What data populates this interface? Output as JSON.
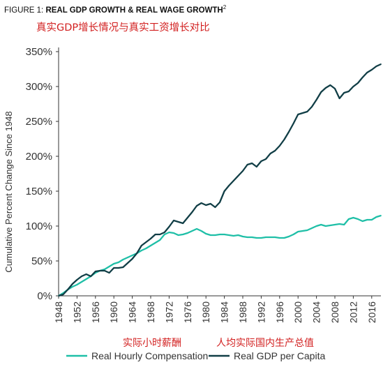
{
  "figure": {
    "label": "FIGURE 1:",
    "title": "REAL GDP GROWTH & REAL WAGE GROWTH",
    "superscript": "2"
  },
  "annotations": {
    "subtitle_cn": "真实GDP增长情况与真实工资增长对比",
    "comp_cn": "实际小时薪酬",
    "gdp_cn": "人均实际国内生产总值"
  },
  "colors": {
    "comp": "#1fbfa7",
    "gdp": "#113e46",
    "annotation": "#d21f1f"
  },
  "chart_data": {
    "type": "line",
    "ylabel": "Cumulative Percent Change Since 1948",
    "xlabel": "",
    "xlim": [
      1948,
      2018
    ],
    "ylim": [
      0,
      350
    ],
    "xticks": [
      1948,
      1952,
      1956,
      1960,
      1964,
      1968,
      1972,
      1976,
      1980,
      1984,
      1988,
      1992,
      1996,
      2000,
      2004,
      2008,
      2012,
      2016
    ],
    "yticks": [
      0,
      50,
      100,
      150,
      200,
      250,
      300,
      350
    ],
    "y_tick_format": "percent",
    "grid": false,
    "legend": "bottom",
    "x": [
      1948,
      1949,
      1950,
      1951,
      1952,
      1953,
      1954,
      1955,
      1956,
      1957,
      1958,
      1959,
      1960,
      1961,
      1962,
      1963,
      1964,
      1965,
      1966,
      1967,
      1968,
      1969,
      1970,
      1971,
      1972,
      1973,
      1974,
      1975,
      1976,
      1977,
      1978,
      1979,
      1980,
      1981,
      1982,
      1983,
      1984,
      1985,
      1986,
      1987,
      1988,
      1989,
      1990,
      1991,
      1992,
      1993,
      1994,
      1995,
      1996,
      1997,
      1998,
      1999,
      2000,
      2001,
      2002,
      2003,
      2004,
      2005,
      2006,
      2007,
      2008,
      2009,
      2010,
      2011,
      2012,
      2013,
      2014,
      2015,
      2016,
      2017,
      2018
    ],
    "series": [
      {
        "name": "Real Hourly Compensation",
        "values": [
          0,
          4,
          9,
          13,
          16,
          20,
          24,
          28,
          33,
          36,
          38,
          42,
          46,
          48,
          52,
          55,
          58,
          61,
          65,
          68,
          72,
          76,
          80,
          88,
          91,
          90,
          87,
          88,
          90,
          93,
          96,
          93,
          89,
          87,
          87,
          88,
          88,
          87,
          86,
          87,
          85,
          84,
          84,
          83,
          83,
          84,
          84,
          84,
          83,
          83,
          85,
          88,
          92,
          93,
          94,
          97,
          100,
          102,
          100,
          101,
          102,
          103,
          102,
          110,
          112,
          110,
          107,
          109,
          109,
          113,
          115
        ]
      },
      {
        "name": "Real GDP per Capita",
        "values": [
          0,
          2,
          9,
          17,
          23,
          28,
          31,
          28,
          35,
          36,
          36,
          33,
          40,
          40,
          41,
          47,
          53,
          61,
          72,
          77,
          82,
          88,
          88,
          91,
          99,
          108,
          106,
          104,
          112,
          120,
          129,
          133,
          130,
          132,
          127,
          134,
          150,
          158,
          165,
          172,
          179,
          188,
          190,
          185,
          193,
          196,
          204,
          208,
          215,
          224,
          235,
          247,
          260,
          262,
          264,
          271,
          281,
          292,
          298,
          302,
          297,
          283,
          291,
          293,
          300,
          305,
          313,
          320,
          324,
          329,
          332
        ]
      }
    ]
  }
}
